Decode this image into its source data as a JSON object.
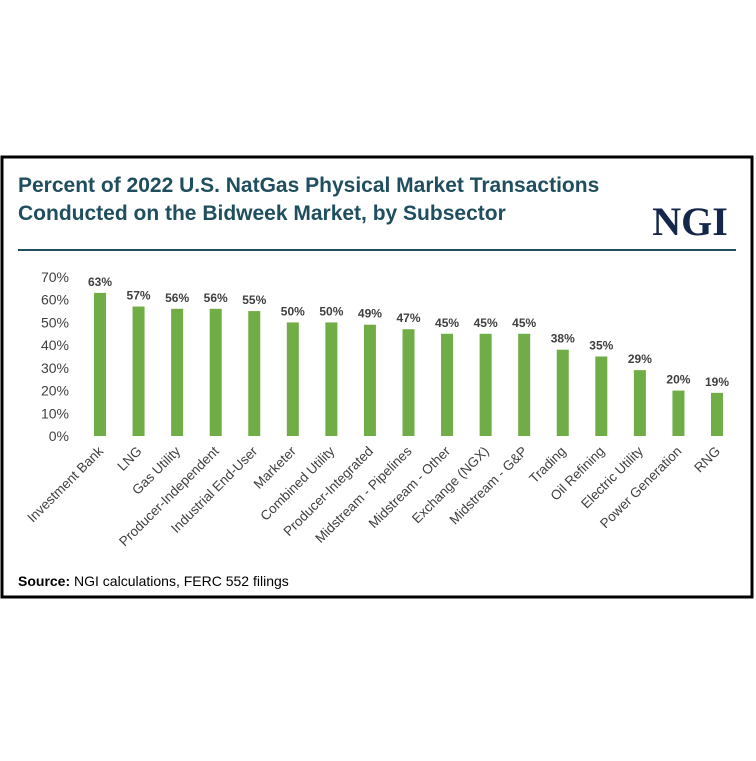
{
  "chart_data": {
    "type": "bar",
    "title": "Percent of 2022 U.S. NatGas Physical Market Transactions Conducted on the Bidweek Market, by Subsector",
    "logo": "NGI",
    "categories": [
      "Investment Bank",
      "LNG",
      "Gas Utility",
      "Producer-Independent",
      "Industrial End-User",
      "Marketer",
      "Combined Utility",
      "Producer-Integrated",
      "Midstream - Pipelines",
      "Midstream - Other",
      "Exchange (NGX)",
      "Midstream - G&P",
      "Trading",
      "Oil Refining",
      "Electric Utility",
      "Power Generation",
      "RNG"
    ],
    "values": [
      63,
      57,
      56,
      56,
      55,
      50,
      50,
      49,
      47,
      45,
      45,
      45,
      38,
      35,
      29,
      20,
      19
    ],
    "value_labels": [
      "63%",
      "57%",
      "56%",
      "56%",
      "55%",
      "50%",
      "50%",
      "49%",
      "47%",
      "45%",
      "45%",
      "45%",
      "38%",
      "35%",
      "29%",
      "20%",
      "19%"
    ],
    "color": "#70ad47",
    "ylim": [
      0,
      70
    ],
    "yticks": [
      {
        "value": 0,
        "label": "0%"
      },
      {
        "value": 10,
        "label": "10%"
      },
      {
        "value": 20,
        "label": "20%"
      },
      {
        "value": 30,
        "label": "30%"
      },
      {
        "value": 40,
        "label": "40%"
      },
      {
        "value": 50,
        "label": "50%"
      },
      {
        "value": 60,
        "label": "60%"
      },
      {
        "value": 70,
        "label": "70%"
      }
    ],
    "grid": false,
    "source_label": "Source:",
    "source": "NGI calculations, FERC 552 filings"
  }
}
